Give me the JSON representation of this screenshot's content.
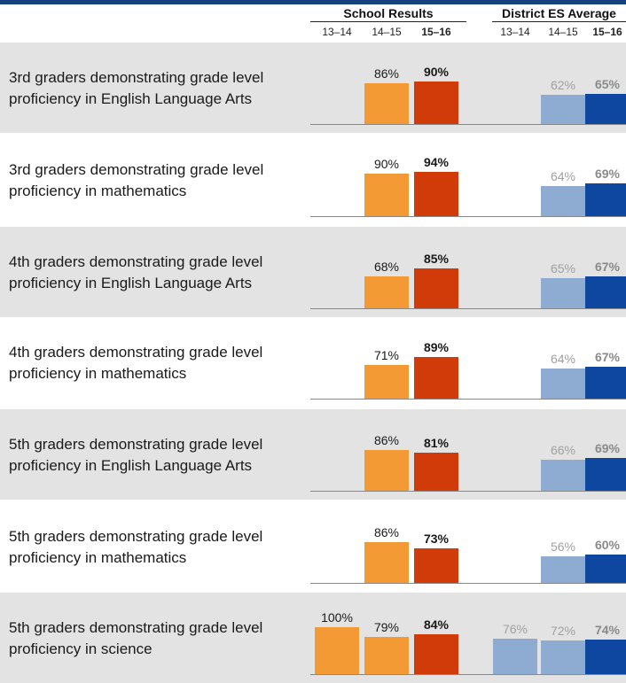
{
  "header": {
    "school_title": "School Results",
    "district_title": "District ES Average",
    "years": [
      "13–14",
      "14–15",
      "15–16"
    ]
  },
  "colors": {
    "top_rule": "#17407e",
    "school_prior_year": "#f39a35",
    "school_current_year": "#d03b09",
    "district_prior_year": "#8eabd2",
    "district_current_year": "#0e47a0",
    "school_label_text": "#1a1a1a",
    "district_label_prior_text": "#a0a0a0",
    "district_label_current_text": "#8a8a8a",
    "row_shade": "#e3e3e3"
  },
  "chart_data": {
    "type": "bar",
    "groups": [
      "School Results",
      "District ES Average"
    ],
    "years": [
      "13–14",
      "14–15",
      "15–16"
    ],
    "rows": [
      {
        "label": "3rd graders demonstrating grade level proficiency in English Language Arts",
        "school": [
          null,
          86,
          90
        ],
        "school_labels": [
          "",
          "86%",
          "90%"
        ],
        "district": [
          null,
          62,
          65
        ],
        "district_labels": [
          "",
          "62%",
          "65%"
        ]
      },
      {
        "label": "3rd graders demonstrating grade level proficiency in mathematics",
        "school": [
          null,
          90,
          94
        ],
        "school_labels": [
          "",
          "90%",
          "94%"
        ],
        "district": [
          null,
          64,
          69
        ],
        "district_labels": [
          "",
          "64%",
          "69%"
        ]
      },
      {
        "label": "4th graders demonstrating grade level proficiency in English Language Arts",
        "school": [
          null,
          68,
          85
        ],
        "school_labels": [
          "",
          "68%",
          "85%"
        ],
        "district": [
          null,
          65,
          67
        ],
        "district_labels": [
          "",
          "65%",
          "67%"
        ]
      },
      {
        "label": "4th graders demonstrating grade level proficiency in mathematics",
        "school": [
          null,
          71,
          89
        ],
        "school_labels": [
          "",
          "71%",
          "89%"
        ],
        "district": [
          null,
          64,
          67
        ],
        "district_labels": [
          "",
          "64%",
          "67%"
        ]
      },
      {
        "label": "5th graders demonstrating grade level proficiency in English Language Arts",
        "school": [
          null,
          86,
          81
        ],
        "school_labels": [
          "",
          "86%",
          "81%"
        ],
        "district": [
          null,
          66,
          69
        ],
        "district_labels": [
          "",
          "66%",
          "69%"
        ]
      },
      {
        "label": "5th graders demonstrating grade level proficiency in mathematics",
        "school": [
          null,
          86,
          73
        ],
        "school_labels": [
          "",
          "86%",
          "73%"
        ],
        "district": [
          null,
          56,
          60
        ],
        "district_labels": [
          "",
          "56%",
          "60%"
        ]
      },
      {
        "label": "5th graders demonstrating grade level proficiency in science",
        "school": [
          100,
          79,
          84
        ],
        "school_labels": [
          "100%",
          "79%",
          "84%"
        ],
        "district": [
          76,
          72,
          74
        ],
        "district_labels": [
          "76%",
          "72%",
          "74%"
        ]
      }
    ],
    "ylim": [
      0,
      100
    ],
    "grid": false
  }
}
